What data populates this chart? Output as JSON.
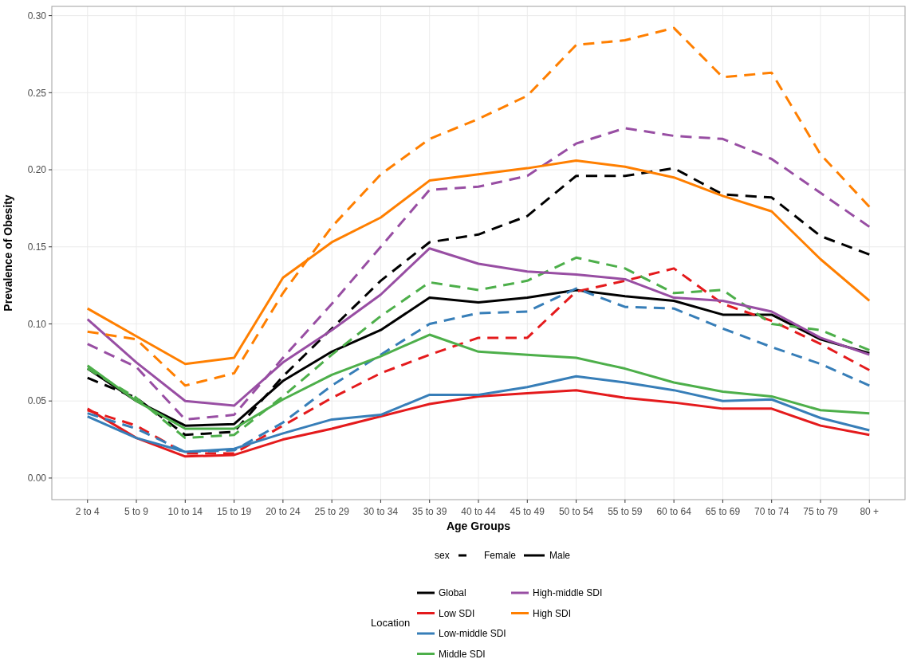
{
  "chart_data": {
    "type": "line",
    "xlabel": "Age Groups",
    "ylabel": "Prevalence of Obesity",
    "legend_title": "Location",
    "legend": "bottom",
    "grid": true,
    "annotations": [
      "sex",
      "Female",
      "Male"
    ],
    "categories": [
      "2 to 4",
      "5 to 9",
      "10 to 14",
      "15 to 19",
      "20 to 24",
      "25 to 29",
      "30 to 34",
      "35 to 39",
      "40 to 44",
      "45 to 49",
      "50 to 54",
      "55 to 59",
      "60 to 64",
      "65 to 69",
      "70 to 74",
      "75 to 79",
      "80 +"
    ],
    "ylim": [
      -0.014,
      0.306
    ],
    "yticks": [
      {
        "value": 0,
        "label": "0.00"
      },
      {
        "value": 0.05,
        "label": "0.05"
      },
      {
        "value": 0.1,
        "label": "0.10"
      },
      {
        "value": 0.15,
        "label": "0.15"
      },
      {
        "value": 0.2,
        "label": "0.20"
      },
      {
        "value": 0.25,
        "label": "0.25"
      },
      {
        "value": 0.3,
        "label": "0.30"
      }
    ],
    "series": [
      {
        "color": "#000000",
        "line_style": "dashed",
        "values": [
          0.065,
          0.052,
          0.028,
          0.03,
          0.066,
          0.097,
          0.128,
          0.153,
          0.158,
          0.17,
          0.196,
          0.196,
          0.201,
          0.184,
          0.182,
          0.157,
          0.145
        ]
      },
      {
        "name": "Global",
        "color": "#000000",
        "line_style": "solid",
        "values": [
          0.071,
          0.05,
          0.034,
          0.035,
          0.063,
          0.082,
          0.096,
          0.117,
          0.114,
          0.117,
          0.122,
          0.118,
          0.115,
          0.106,
          0.106,
          0.09,
          0.081
        ]
      },
      {
        "color": "#e41a1c",
        "line_style": "dashed",
        "values": [
          0.044,
          0.034,
          0.016,
          0.016,
          0.034,
          0.052,
          0.068,
          0.08,
          0.091,
          0.091,
          0.121,
          0.128,
          0.136,
          0.113,
          0.102,
          0.087,
          0.07
        ]
      },
      {
        "name": "Low SDI",
        "color": "#e41a1c",
        "line_style": "solid",
        "values": [
          0.045,
          0.026,
          0.014,
          0.015,
          0.025,
          0.032,
          0.04,
          0.048,
          0.053,
          0.055,
          0.057,
          0.052,
          0.049,
          0.045,
          0.045,
          0.034,
          0.028
        ]
      },
      {
        "color": "#377eb8",
        "line_style": "dashed",
        "values": [
          0.042,
          0.032,
          0.017,
          0.018,
          0.036,
          0.06,
          0.08,
          0.1,
          0.107,
          0.108,
          0.123,
          0.111,
          0.11,
          0.097,
          0.085,
          0.074,
          0.06
        ]
      },
      {
        "name": "Low-middle SDI",
        "color": "#377eb8",
        "line_style": "solid",
        "values": [
          0.04,
          0.026,
          0.017,
          0.019,
          0.029,
          0.038,
          0.041,
          0.054,
          0.054,
          0.059,
          0.066,
          0.062,
          0.057,
          0.05,
          0.051,
          0.039,
          0.031
        ]
      },
      {
        "color": "#4daf4a",
        "line_style": "dashed",
        "values": [
          0.071,
          0.052,
          0.026,
          0.028,
          0.053,
          0.08,
          0.105,
          0.127,
          0.122,
          0.128,
          0.143,
          0.136,
          0.12,
          0.122,
          0.1,
          0.096,
          0.083
        ]
      },
      {
        "name": "Middle SDI",
        "color": "#4daf4a",
        "line_style": "solid",
        "values": [
          0.073,
          0.05,
          0.032,
          0.032,
          0.051,
          0.067,
          0.079,
          0.093,
          0.082,
          0.08,
          0.078,
          0.071,
          0.062,
          0.056,
          0.053,
          0.044,
          0.042
        ]
      },
      {
        "color": "#984ea3",
        "line_style": "dashed",
        "values": [
          0.087,
          0.072,
          0.038,
          0.041,
          0.078,
          0.113,
          0.15,
          0.187,
          0.189,
          0.196,
          0.217,
          0.227,
          0.222,
          0.22,
          0.207,
          0.185,
          0.163
        ]
      },
      {
        "name": "High-middle SDI",
        "color": "#984ea3",
        "line_style": "solid",
        "values": [
          0.103,
          0.075,
          0.05,
          0.047,
          0.075,
          0.096,
          0.119,
          0.149,
          0.139,
          0.134,
          0.132,
          0.129,
          0.117,
          0.115,
          0.108,
          0.091,
          0.08
        ]
      },
      {
        "color": "#ff7f00",
        "line_style": "dashed",
        "values": [
          0.095,
          0.09,
          0.06,
          0.068,
          0.12,
          0.163,
          0.197,
          0.22,
          0.233,
          0.248,
          0.281,
          0.284,
          0.292,
          0.26,
          0.263,
          0.21,
          0.176
        ]
      },
      {
        "name": "High SDI",
        "color": "#ff7f00",
        "line_style": "solid",
        "values": [
          0.11,
          0.092,
          0.074,
          0.078,
          0.13,
          0.153,
          0.169,
          0.193,
          0.197,
          0.201,
          0.206,
          0.202,
          0.195,
          0.183,
          0.173,
          0.142,
          0.115
        ]
      }
    ]
  }
}
